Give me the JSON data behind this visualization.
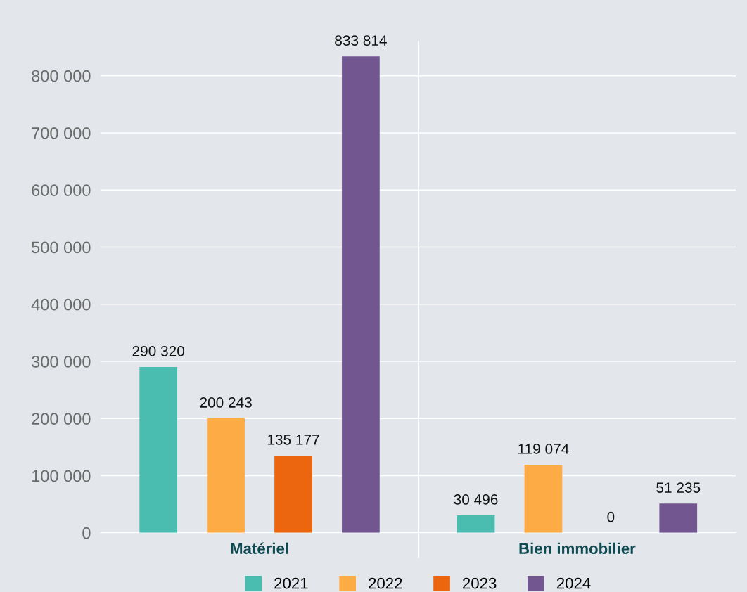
{
  "chart_data": {
    "type": "bar",
    "categories": [
      "Matériel",
      "Bien immobilier"
    ],
    "series": [
      {
        "name": "2021",
        "color": "#4bbcb0",
        "values": [
          290320,
          30496
        ]
      },
      {
        "name": "2022",
        "color": "#fdab45",
        "values": [
          200243,
          119074
        ]
      },
      {
        "name": "2023",
        "color": "#ec650f",
        "values": [
          135177,
          0
        ]
      },
      {
        "name": "2024",
        "color": "#725690",
        "values": [
          833814,
          51235
        ]
      }
    ],
    "ylim": [
      0,
      860000
    ],
    "yticks": [
      0,
      {
        "value": 100000,
        "label": "100 000"
      },
      {
        "value": 200000,
        "label": "200 000"
      },
      {
        "value": 300000,
        "label": "300 000"
      },
      {
        "value": 400000,
        "label": "400 000"
      },
      {
        "value": 500000,
        "label": "500 000"
      },
      {
        "value": 600000,
        "label": "600 000"
      },
      {
        "value": 700000,
        "label": "700 000"
      },
      {
        "value": 800000,
        "label": "800 000"
      }
    ],
    "value_labels": [
      [
        "290 320",
        "30 496"
      ],
      [
        "200 243",
        "119 074"
      ],
      [
        "135 177",
        "0"
      ],
      [
        "833 814",
        "51 235"
      ]
    ],
    "grid": "y",
    "legend": "bottom"
  }
}
